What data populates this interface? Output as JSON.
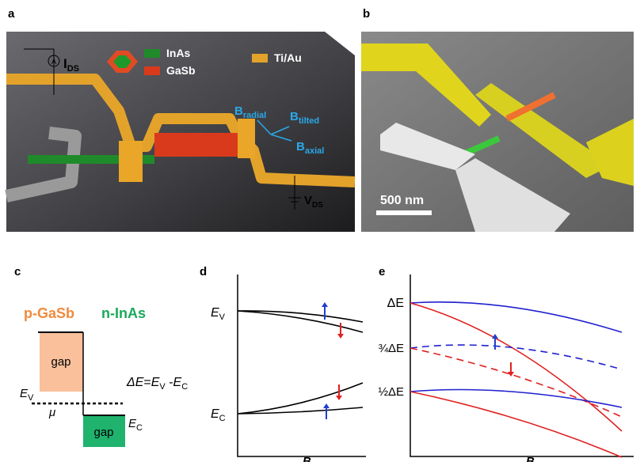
{
  "panel_a": {
    "label": "a",
    "current": {
      "main": "I",
      "sub": "DS"
    },
    "meter": "A",
    "legend": {
      "inas": "InAs",
      "gasb": "GaSb",
      "tiau": "Ti/Au"
    },
    "b_radial": {
      "main": "B",
      "sub": "radial"
    },
    "b_tilted": {
      "main": "B",
      "sub": "tilted"
    },
    "b_axial": {
      "main": "B",
      "sub": "axial"
    },
    "voltage": {
      "main": "V",
      "sub": "DS"
    }
  },
  "panel_b": {
    "label": "b",
    "scale_bar": "500 nm"
  },
  "panel_c": {
    "label": "c",
    "p_side": "p-GaSb",
    "n_side": "n-InAs",
    "gap_top": "gap",
    "gap_bottom": "gap",
    "delta_e": {
      "lhs": "ΔE",
      "eq": "=",
      "ev": "E",
      "ev_sub": "V",
      "minus": " -",
      "ec": "E",
      "ec_sub": "C"
    },
    "ev": {
      "main": "E",
      "sub": "V"
    },
    "mu": "μ",
    "ec": {
      "main": "E",
      "sub": "C"
    }
  },
  "panel_d": {
    "label": "d",
    "ev": {
      "main": "E",
      "sub": "V"
    },
    "ec": {
      "main": "E",
      "sub": "C"
    },
    "x_label": "B"
  },
  "panel_e": {
    "label": "e",
    "levels": [
      "ΔE",
      "¾ΔE",
      "½ΔE"
    ],
    "x_label": "B"
  }
}
